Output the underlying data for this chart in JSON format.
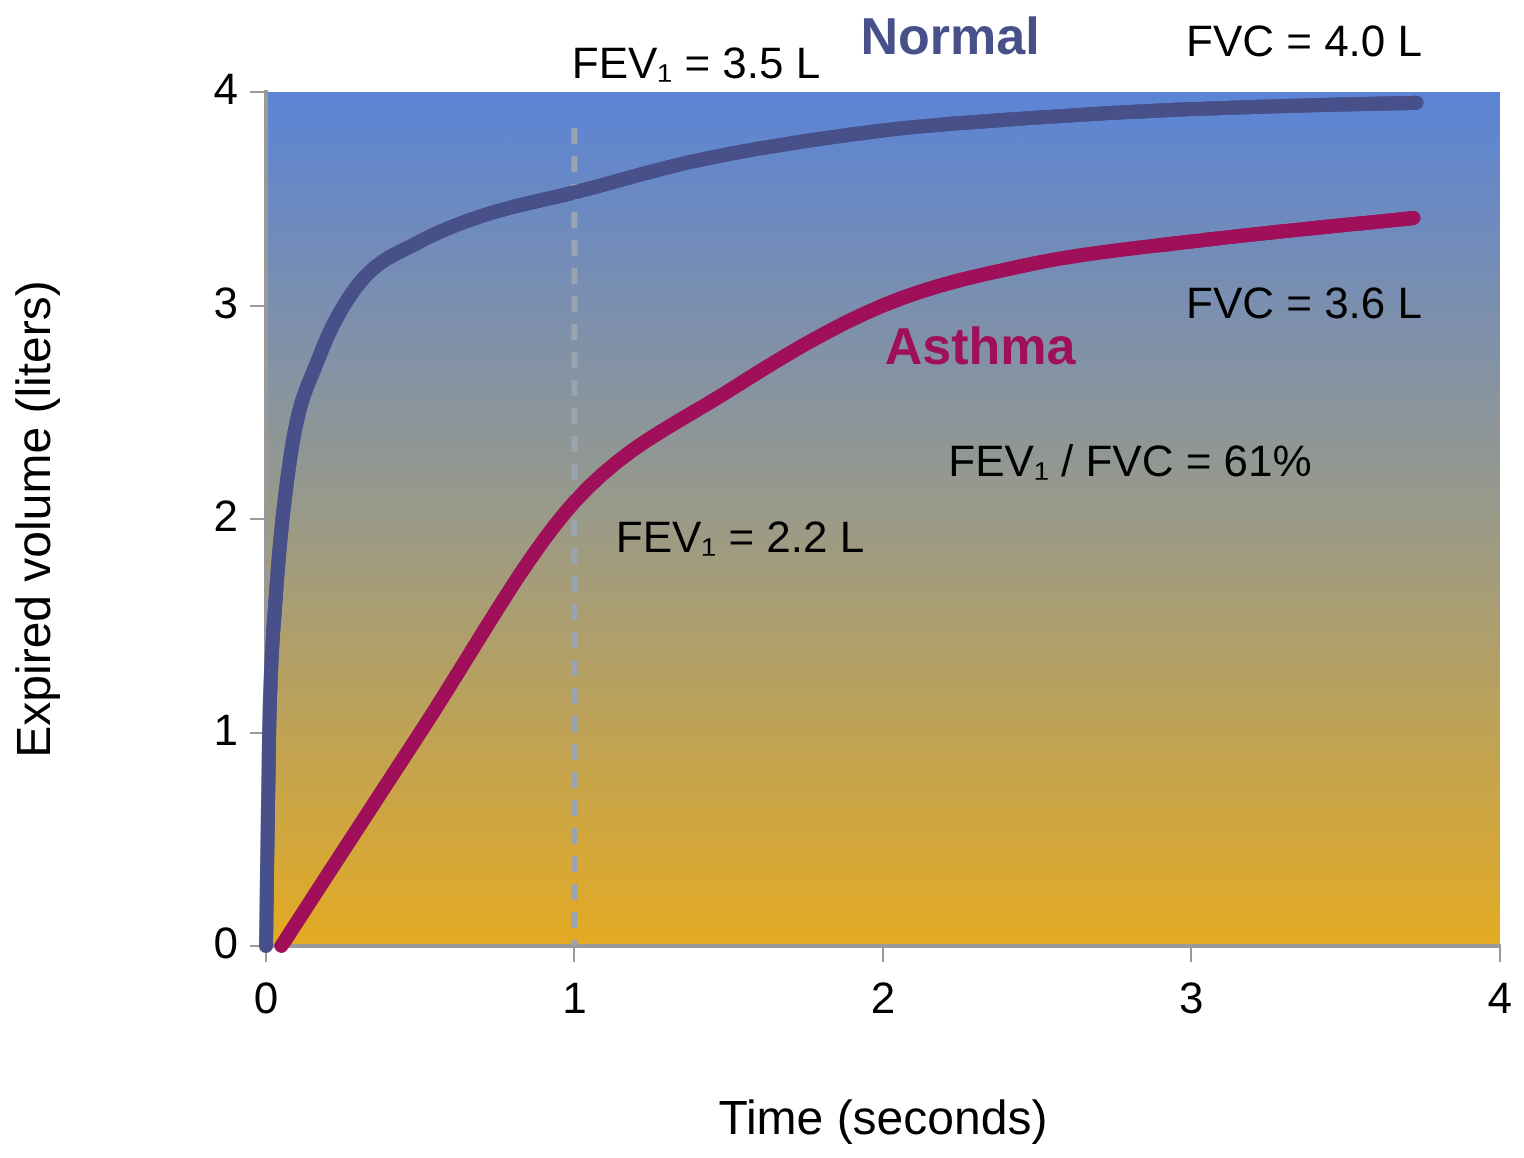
{
  "chart_data": {
    "type": "line",
    "xlabel": "Time (seconds)",
    "ylabel": "Expired volume (liters)",
    "xlim": [
      0,
      4
    ],
    "ylim": [
      0,
      4
    ],
    "xticks": [
      0,
      1,
      2,
      3,
      4
    ],
    "yticks": [
      0,
      1,
      2,
      3,
      4
    ],
    "grid": false,
    "legend": false,
    "marker": "none",
    "line_style": "solid",
    "series": [
      {
        "name": "Normal",
        "color": "#48508a",
        "x": [
          0,
          0.01,
          0.03,
          0.08,
          0.17,
          0.3,
          0.5,
          0.7,
          1,
          1.4,
          2,
          2.5,
          3,
          3.73
        ],
        "values": [
          0,
          1,
          1.6,
          2.3,
          2.75,
          3.1,
          3.3,
          3.42,
          3.53,
          3.68,
          3.82,
          3.88,
          3.92,
          3.95
        ]
      },
      {
        "name": "Asthma",
        "color": "#a0105a",
        "x": [
          0.05,
          0.5,
          1,
          1.5,
          2,
          2.5,
          3,
          3.72
        ],
        "values": [
          0,
          1,
          2.08,
          2.6,
          3,
          3.2,
          3.3,
          3.41
        ]
      }
    ],
    "ref_lines": [
      {
        "axis": "x",
        "value": 1,
        "color": "#9aa4b0",
        "line_style": "dashed"
      }
    ],
    "annotations": [
      "FEV₁ = 3.5 L",
      "FVC = 4.0 L",
      "FVC = 3.6 L",
      "FEV₁ / FVC = 61%",
      "FEV₁ = 2.2 L"
    ]
  }
}
